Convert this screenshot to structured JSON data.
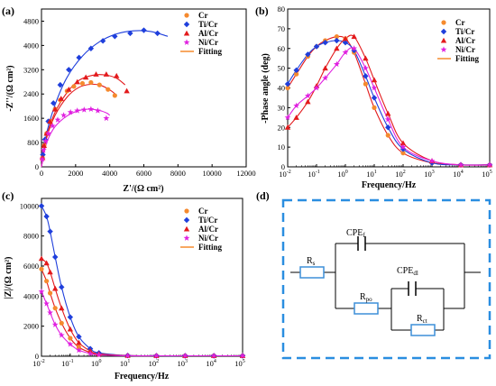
{
  "colors": {
    "Cr": "#f58a2e",
    "Ti/Cr": "#1f3fdc",
    "Al/Cr": "#e31a1c",
    "Ni/Cr": "#e020e0",
    "fit_ti": "#1f3fdc",
    "fit_other": "#e31a1c",
    "fit_ni": "#e020e0",
    "legend_fit": "#f58a2e",
    "circuit_border": "#2a8ee0",
    "circuit_element": "#3d8fd8"
  },
  "legend": {
    "cr": "Cr",
    "ti": "Ti/Cr",
    "al": "Al/Cr",
    "ni": "Ni/Cr",
    "fitting": "Fitting"
  },
  "panels": {
    "a": {
      "label": "(a)"
    },
    "b": {
      "label": "(b)"
    },
    "c": {
      "label": "(c)"
    },
    "d": {
      "label": "(d)"
    }
  },
  "circuit": {
    "rs": "R",
    "rs_sub": "s",
    "cpef": "CPE",
    "cpef_sub": "f",
    "rpo": "R",
    "rpo_sub": "po",
    "cpedl": "CPE",
    "cpedl_sub": "dl",
    "rct": "R",
    "rct_sub": "ct"
  },
  "chart_data": [
    {
      "type": "scatter",
      "panel": "a",
      "xlabel": "Z'/(Ω cm²)",
      "ylabel": "-Z''/(Ω cm²)",
      "xlim": [
        0,
        12000
      ],
      "ylim": [
        0,
        5200
      ],
      "xticks": [
        0,
        2000,
        4000,
        6000,
        8000,
        10000,
        12000
      ],
      "yticks": [
        0,
        800,
        1600,
        2400,
        3200,
        4000,
        4800
      ],
      "series": [
        {
          "name": "Cr",
          "marker": "circle",
          "x": [
            60,
            150,
            300,
            500,
            800,
            1100,
            1500,
            1900,
            2400,
            2900,
            3400,
            3900,
            4300
          ],
          "y": [
            300,
            700,
            1100,
            1500,
            1900,
            2200,
            2500,
            2650,
            2750,
            2780,
            2700,
            2550,
            2350
          ]
        },
        {
          "name": "Ti/Cr",
          "marker": "diamond",
          "x": [
            80,
            200,
            400,
            700,
            1100,
            1600,
            2200,
            2900,
            3600,
            4300,
            5200,
            6000,
            6800
          ],
          "y": [
            400,
            900,
            1500,
            2100,
            2700,
            3200,
            3600,
            3900,
            4150,
            4300,
            4400,
            4500,
            4400
          ]
        },
        {
          "name": "Al/Cr",
          "marker": "triangle",
          "x": [
            60,
            150,
            300,
            500,
            800,
            1150,
            1600,
            2100,
            2600,
            3200,
            3800,
            4400,
            5000
          ],
          "y": [
            300,
            700,
            1100,
            1500,
            1900,
            2250,
            2550,
            2800,
            2950,
            3050,
            3050,
            3000,
            2500
          ]
        },
        {
          "name": "Ni/Cr",
          "marker": "star",
          "x": [
            50,
            120,
            250,
            400,
            650,
            950,
            1300,
            1700,
            2100,
            2500,
            2900,
            3300,
            3800
          ],
          "y": [
            250,
            550,
            850,
            1100,
            1350,
            1550,
            1700,
            1800,
            1850,
            1880,
            1900,
            1850,
            1600
          ]
        }
      ],
      "fits": [
        {
          "series": "Ti/Cr",
          "x": [
            0,
            300,
            800,
            1500,
            2400,
            3400,
            4400,
            5400,
            6400,
            7400
          ],
          "y": [
            0,
            1100,
            2050,
            2950,
            3650,
            4120,
            4380,
            4480,
            4460,
            4300
          ]
        },
        {
          "series": "Al/Cr",
          "x": [
            0,
            300,
            800,
            1500,
            2200,
            3000,
            3700,
            4400,
            4900
          ],
          "y": [
            0,
            1000,
            1800,
            2450,
            2850,
            3020,
            3030,
            2920,
            2700
          ]
        },
        {
          "series": "Cr",
          "x": [
            0,
            300,
            800,
            1500,
            2200,
            2900,
            3500,
            4100,
            4400
          ],
          "y": [
            0,
            950,
            1700,
            2300,
            2620,
            2720,
            2680,
            2500,
            2350
          ]
        },
        {
          "series": "Ni/Cr",
          "x": [
            0,
            250,
            700,
            1300,
            2000,
            2700,
            3300,
            3800,
            4000
          ],
          "y": [
            0,
            700,
            1250,
            1600,
            1820,
            1900,
            1870,
            1780,
            1700
          ]
        }
      ]
    },
    {
      "type": "scatter",
      "panel": "b",
      "xlabel": "Frequency/Hz",
      "ylabel": "-Phase angle (deg)",
      "xscale": "log",
      "xlim": [
        0.01,
        100000
      ],
      "ylim": [
        0,
        80
      ],
      "yticks": [
        0,
        10,
        20,
        30,
        40,
        50,
        60,
        70,
        80
      ],
      "series": [
        {
          "name": "Cr",
          "marker": "circle",
          "x": [
            0.01,
            0.02,
            0.05,
            0.1,
            0.2,
            0.5,
            1,
            2,
            5,
            10,
            30,
            100,
            1000,
            10000,
            100000
          ],
          "y": [
            40,
            47,
            56,
            61,
            64,
            66,
            65,
            58,
            42,
            30,
            16,
            7,
            2,
            1,
            1
          ]
        },
        {
          "name": "Ti/Cr",
          "marker": "diamond",
          "x": [
            0.01,
            0.02,
            0.05,
            0.1,
            0.2,
            0.5,
            1,
            2,
            5,
            10,
            30,
            100,
            1000,
            10000,
            100000
          ],
          "y": [
            42,
            49,
            57,
            61,
            63,
            64,
            63,
            59,
            46,
            35,
            20,
            9,
            2,
            1,
            1
          ]
        },
        {
          "name": "Al/Cr",
          "marker": "triangle",
          "x": [
            0.01,
            0.02,
            0.05,
            0.1,
            0.2,
            0.5,
            1,
            2,
            5,
            10,
            30,
            100,
            1000,
            10000,
            100000
          ],
          "y": [
            20,
            25,
            33,
            41,
            50,
            60,
            65,
            66,
            55,
            44,
            27,
            12,
            3,
            1,
            1
          ]
        },
        {
          "name": "Ni/Cr",
          "marker": "star",
          "x": [
            0.01,
            0.02,
            0.05,
            0.1,
            0.2,
            0.5,
            1,
            2,
            5,
            10,
            30,
            100,
            1000,
            10000,
            100000
          ],
          "y": [
            25,
            31,
            36,
            40,
            45,
            52,
            58,
            60,
            50,
            40,
            24,
            10,
            3,
            1,
            1
          ]
        }
      ]
    },
    {
      "type": "scatter",
      "panel": "c",
      "xlabel": "Frequency/Hz",
      "ylabel": "|Z|/(Ω cm²)",
      "xscale": "log",
      "xlim": [
        0.01,
        100000
      ],
      "ylim": [
        0,
        10500
      ],
      "yticks": [
        0,
        2000,
        4000,
        6000,
        8000,
        10000
      ],
      "series": [
        {
          "name": "Cr",
          "marker": "circle",
          "x": [
            0.01,
            0.015,
            0.02,
            0.03,
            0.05,
            0.1,
            0.2,
            0.5,
            1,
            10,
            100,
            1000,
            10000,
            100000
          ],
          "y": [
            5800,
            5000,
            4200,
            3200,
            2200,
            1200,
            600,
            250,
            120,
            40,
            30,
            30,
            30,
            30
          ]
        },
        {
          "name": "Ti/Cr",
          "marker": "diamond",
          "x": [
            0.01,
            0.015,
            0.02,
            0.03,
            0.05,
            0.1,
            0.2,
            0.5,
            1,
            10,
            100,
            1000,
            10000,
            100000
          ],
          "y": [
            10000,
            9300,
            8300,
            6600,
            4600,
            2600,
            1300,
            500,
            220,
            50,
            30,
            30,
            30,
            30
          ]
        },
        {
          "name": "Al/Cr",
          "marker": "triangle",
          "x": [
            0.01,
            0.015,
            0.02,
            0.03,
            0.05,
            0.1,
            0.2,
            0.5,
            1,
            10,
            100,
            1000,
            10000,
            100000
          ],
          "y": [
            6500,
            6200,
            5600,
            4500,
            3200,
            1800,
            900,
            350,
            160,
            45,
            30,
            30,
            30,
            30
          ]
        },
        {
          "name": "Ni/Cr",
          "marker": "star",
          "x": [
            0.01,
            0.015,
            0.02,
            0.03,
            0.05,
            0.1,
            0.2,
            0.5,
            1,
            10,
            100,
            1000,
            10000,
            100000
          ],
          "y": [
            4300,
            3500,
            2900,
            2100,
            1400,
            800,
            400,
            180,
            90,
            35,
            30,
            30,
            30,
            30
          ]
        }
      ]
    }
  ]
}
